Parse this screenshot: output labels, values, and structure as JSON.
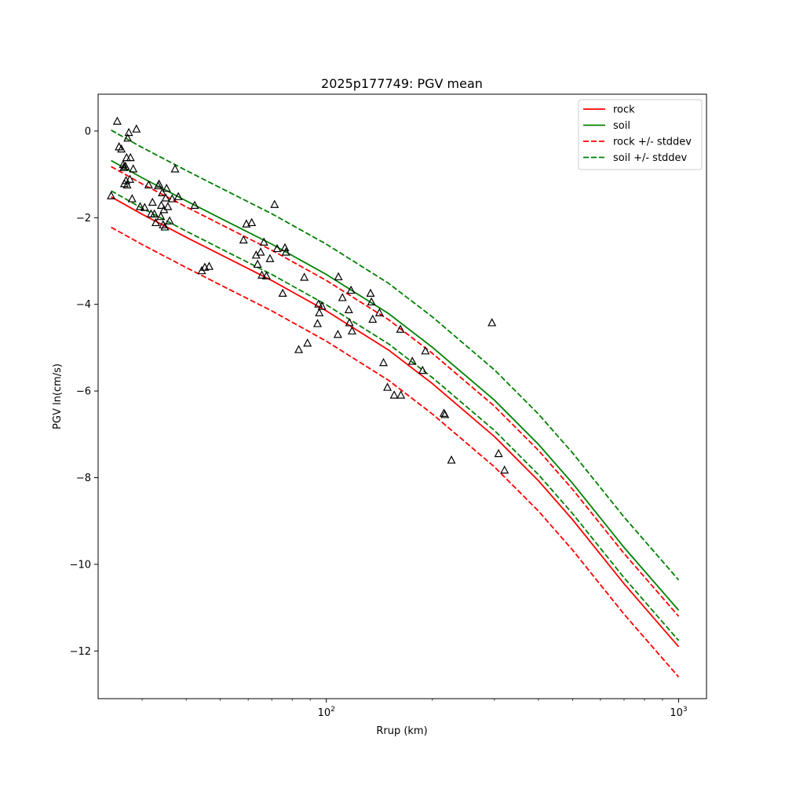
{
  "chart_data": {
    "type": "line",
    "title": "2025p177749: PGV mean",
    "xlabel": "Rrup (km)",
    "ylabel": "PGV ln(cm/s)",
    "xscale": "log",
    "xlim": [
      22.5,
      1200
    ],
    "ylim": [
      -13.1,
      0.85
    ],
    "grid": false,
    "legend": "top-right",
    "x_ticks": [
      {
        "value": 100,
        "label": "10",
        "sup": "2"
      },
      {
        "value": 1000,
        "label": "10",
        "sup": "3"
      }
    ],
    "y_ticks": [
      {
        "value": 0,
        "label": "0"
      },
      {
        "value": -2,
        "label": "−2"
      },
      {
        "value": -4,
        "label": "−4"
      },
      {
        "value": -6,
        "label": "−6"
      },
      {
        "value": -8,
        "label": "−8"
      },
      {
        "value": -10,
        "label": "−10"
      },
      {
        "value": -12,
        "label": "−12"
      }
    ],
    "series": [
      {
        "name": "rock",
        "color": "#ff0000",
        "dash": false,
        "x": [
          24.5,
          30,
          40,
          50,
          70,
          100,
          150,
          200,
          300,
          400,
          500,
          700,
          1000
        ],
        "y": [
          -1.52,
          -1.92,
          -2.45,
          -2.85,
          -3.45,
          -4.15,
          -5.05,
          -5.83,
          -7.05,
          -8.07,
          -8.97,
          -10.45,
          -11.9
        ]
      },
      {
        "name": "soil",
        "color": "#008000",
        "dash": false,
        "x": [
          24.5,
          30,
          40,
          50,
          70,
          100,
          150,
          200,
          300,
          400,
          500,
          700,
          1000
        ],
        "y": [
          -0.68,
          -1.08,
          -1.61,
          -2.01,
          -2.61,
          -3.31,
          -4.21,
          -4.99,
          -6.21,
          -7.23,
          -8.13,
          -9.61,
          -11.06
        ]
      },
      {
        "name": "rock +/- stddev",
        "color": "#ff0000",
        "dash": true,
        "x": [
          24.5,
          30,
          40,
          50,
          70,
          100,
          150,
          200,
          300,
          400,
          500,
          700,
          1000
        ],
        "y": [
          -0.82,
          -1.22,
          -1.75,
          -2.15,
          -2.75,
          -3.45,
          -4.35,
          -5.13,
          -6.35,
          -7.37,
          -8.27,
          -9.75,
          -11.2
        ]
      },
      {
        "name": "",
        "color": "#ff0000",
        "dash": true,
        "x": [
          24.5,
          30,
          40,
          50,
          70,
          100,
          150,
          200,
          300,
          400,
          500,
          700,
          1000
        ],
        "y": [
          -2.22,
          -2.62,
          -3.15,
          -3.55,
          -4.15,
          -4.85,
          -5.75,
          -6.53,
          -7.75,
          -8.77,
          -9.67,
          -11.15,
          -12.6
        ]
      },
      {
        "name": "soil +/- stddev",
        "color": "#008000",
        "dash": true,
        "x": [
          24.5,
          30,
          40,
          50,
          70,
          100,
          150,
          200,
          300,
          400,
          500,
          700,
          1000
        ],
        "y": [
          0.02,
          -0.38,
          -0.91,
          -1.31,
          -1.91,
          -2.61,
          -3.51,
          -4.29,
          -5.51,
          -6.53,
          -7.43,
          -8.91,
          -10.36
        ]
      },
      {
        "name": "",
        "color": "#008000",
        "dash": true,
        "x": [
          24.5,
          30,
          40,
          50,
          70,
          100,
          150,
          200,
          300,
          400,
          500,
          700,
          1000
        ],
        "y": [
          -1.38,
          -1.78,
          -2.31,
          -2.71,
          -3.31,
          -4.01,
          -4.91,
          -5.69,
          -6.91,
          -7.93,
          -8.83,
          -10.31,
          -11.76
        ]
      }
    ],
    "observations": {
      "marker": "triangle",
      "x": [
        24.5,
        25.5,
        25.8,
        26.2,
        26.5,
        26.6,
        26.7,
        26.9,
        27.0,
        27.1,
        27.2,
        27.3,
        27.5,
        27.7,
        27.8,
        28.1,
        28.3,
        28.9,
        29.6,
        30.5,
        31.3,
        31.8,
        32.1,
        32.5,
        32.8,
        33.3,
        33.5,
        33.9,
        34.0,
        34.2,
        34.4,
        34.6,
        34.8,
        35.0,
        35.2,
        35.5,
        35.9,
        36.5,
        37.2,
        38.0,
        42.3,
        44.3,
        45.2,
        46.5,
        58.2,
        59.3,
        61.4,
        63.2,
        63.8,
        65.1,
        65.6,
        66.5,
        67.6,
        69.2,
        71.3,
        72.5,
        75.2,
        76.3,
        76.8,
        83.5,
        86.6,
        88.4,
        94.4,
        95.0,
        95.5,
        97.2,
        107.8,
        108.2,
        111.1,
        115.8,
        116.3,
        117.5,
        118.3,
        133.5,
        134.3,
        135.4,
        141.5,
        145.3,
        149.1,
        155.8,
        162.3,
        162.8,
        175.4,
        187.6,
        191.1,
        215.6,
        217.1,
        226.5,
        295.2,
        308.3,
        320.5
      ],
      "y": [
        -1.5,
        0.22,
        -0.37,
        -0.42,
        -0.78,
        -0.85,
        -1.22,
        -0.82,
        -1.15,
        -0.62,
        -1.25,
        -0.17,
        -0.04,
        -1.12,
        -0.62,
        -1.57,
        -0.88,
        0.04,
        -1.75,
        -1.77,
        -1.25,
        -1.92,
        -1.65,
        -1.92,
        -2.12,
        -1.27,
        -1.23,
        -1.98,
        -1.72,
        -1.43,
        -2.17,
        -1.82,
        -2.22,
        -1.55,
        -1.33,
        -1.75,
        -2.08,
        -1.57,
        -0.88,
        -1.52,
        -1.72,
        -3.23,
        -3.15,
        -3.13,
        -2.52,
        -2.15,
        -2.12,
        -2.87,
        -3.08,
        -2.8,
        -3.33,
        -2.57,
        -3.35,
        -2.95,
        -1.7,
        -2.72,
        -3.75,
        -2.7,
        -2.8,
        -5.05,
        -3.38,
        -4.9,
        -4.45,
        -4.0,
        -4.2,
        -4.05,
        -4.7,
        -3.37,
        -3.85,
        -4.13,
        -4.43,
        -3.68,
        -4.62,
        -3.75,
        -3.95,
        -4.35,
        -4.2,
        -5.35,
        -5.92,
        -6.1,
        -4.58,
        -6.1,
        -5.32,
        -5.53,
        -5.08,
        -6.52,
        -6.55,
        -7.6,
        -4.43,
        -7.45,
        -7.83
      ]
    }
  }
}
